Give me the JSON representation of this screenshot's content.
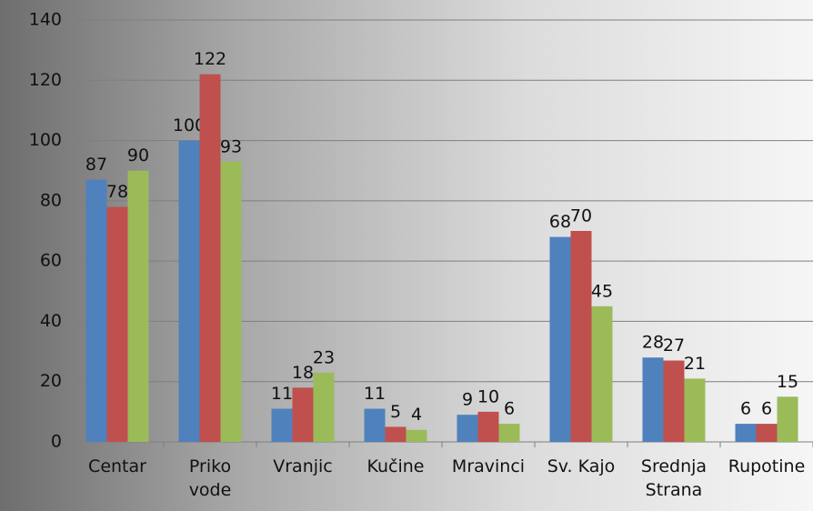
{
  "chart_data": {
    "type": "bar",
    "categories": [
      "Centar",
      "Priko vode",
      "Vranjic",
      "Kučine",
      "Mravinci",
      "Sv. Kajo",
      "Srednja Strana",
      "Rupotine"
    ],
    "series": [
      {
        "color": "#4f81bd",
        "values": [
          87,
          100,
          11,
          11,
          9,
          68,
          28,
          6
        ]
      },
      {
        "color": "#c0504d",
        "values": [
          78,
          122,
          18,
          5,
          10,
          70,
          27,
          6
        ]
      },
      {
        "color": "#9bbb59",
        "values": [
          90,
          93,
          23,
          4,
          6,
          45,
          21,
          15
        ]
      }
    ],
    "ylim": [
      0,
      140
    ],
    "yticks": [
      0,
      20,
      40,
      60,
      80,
      100,
      120,
      140
    ],
    "grid": true
  }
}
